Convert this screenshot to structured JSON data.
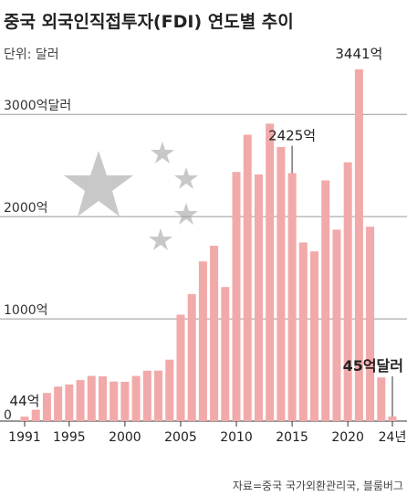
{
  "chart_data": {
    "type": "bar",
    "title": "중국 외국인직접투자(FDI) 연도별 추이",
    "subtitle": "단위: 달러",
    "source": "자료=중국 국가외환관리국, 블룸버그",
    "categories": [
      "1991",
      null,
      null,
      null,
      "1995",
      null,
      null,
      null,
      null,
      "2000",
      null,
      null,
      null,
      null,
      "2005",
      null,
      null,
      null,
      null,
      "2010",
      null,
      null,
      null,
      null,
      "2015",
      null,
      null,
      null,
      null,
      "2020",
      null,
      null,
      null,
      "24년"
    ],
    "values": [
      44,
      111,
      275,
      338,
      358,
      401,
      442,
      438,
      387,
      384,
      442,
      493,
      494,
      601,
      1041,
      1241,
      1562,
      1715,
      1311,
      2437,
      2801,
      2412,
      2909,
      2681,
      2425,
      1747,
      1660,
      2354,
      1872,
      2531,
      3441,
      1901,
      427,
      45
    ],
    "value_labels": [
      "44억",
      null,
      null,
      null,
      null,
      null,
      null,
      null,
      null,
      null,
      null,
      null,
      null,
      null,
      null,
      null,
      null,
      null,
      null,
      null,
      null,
      null,
      null,
      null,
      "2425억",
      null,
      null,
      null,
      null,
      null,
      "3441억",
      null,
      null,
      "45억달러"
    ],
    "color": "#f2a9a9",
    "ylim": [
      0,
      3100
    ],
    "yticks": [
      {
        "value": 0,
        "label": "0"
      },
      {
        "value": 1000,
        "label": "1000억"
      },
      {
        "value": 2000,
        "label": "2000억"
      },
      {
        "value": 3000,
        "label": "3000억달러"
      }
    ],
    "grid": true
  }
}
